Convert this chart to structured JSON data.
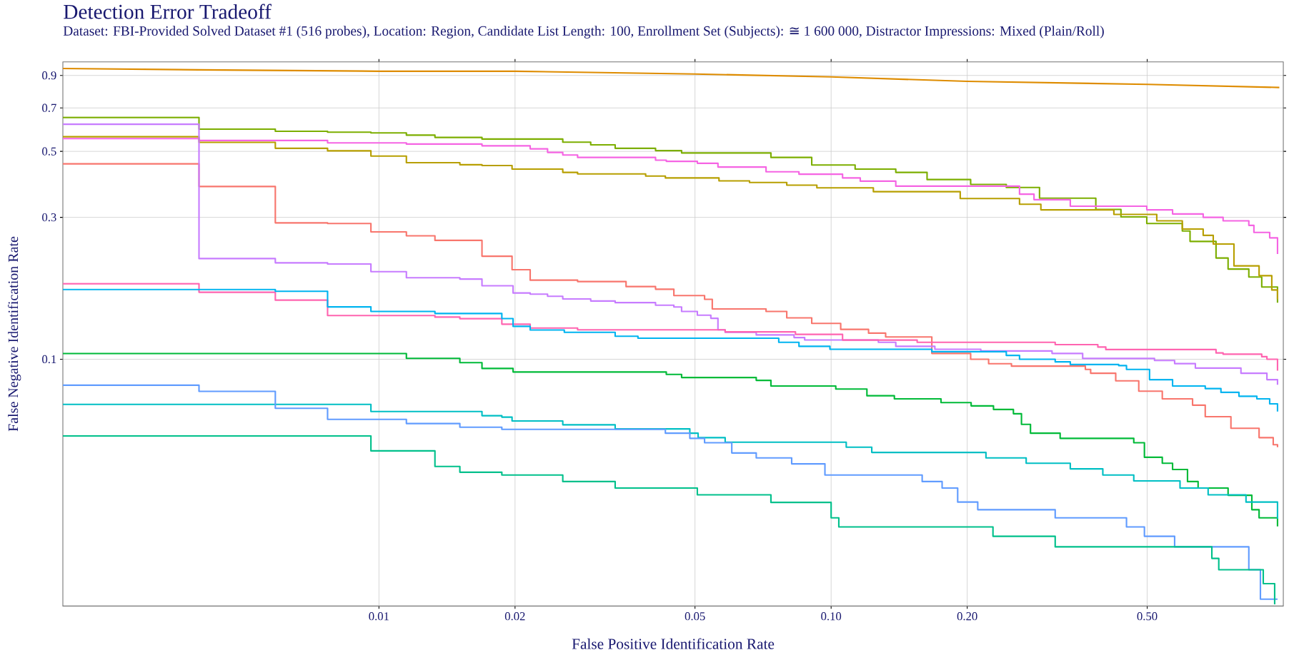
{
  "chart_data": {
    "type": "step",
    "title": "Detection Error Tradeoff",
    "subtitle": "Dataset: FBI-Provided Solved Dataset #1 (516 probes), Location: Region, Candidate List Length: 100, Enrollment Set (Subjects): ≅ 1 600 000, Distractor Impressions: Mixed (Plain/Roll)",
    "xlabel": "False Positive Identification Rate",
    "ylabel": "False Negative Identification Rate",
    "log": "xy",
    "grid": true,
    "line_style": "solid",
    "xlim": [
      0.002,
      1
    ],
    "ylim": [
      0.0148,
      1
    ],
    "xticks": [
      0.01,
      0.02,
      0.05,
      {
        "value": 0.1,
        "label": "0.10"
      },
      {
        "value": 0.2,
        "label": "0.20"
      },
      {
        "value": 0.5,
        "label": "0.50"
      }
    ],
    "yticks": [
      0.1,
      0.3,
      0.5,
      0.7,
      0.9
    ],
    "series": [
      {
        "type": "line",
        "color": "#DE8C00",
        "x": [
          0.002,
          0.004,
          0.01,
          0.02,
          0.05,
          0.1,
          0.2,
          0.5,
          0.98
        ],
        "values": [
          0.95,
          0.94,
          0.93,
          0.93,
          0.91,
          0.89,
          0.86,
          0.84,
          0.82
        ]
      },
      {
        "color": "#7CAE00",
        "x": [
          0.002,
          0.004,
          0.0059,
          0.0077,
          0.0096,
          0.0115,
          0.0133,
          0.0169,
          0.0255,
          0.0294,
          0.0333,
          0.0409,
          0.0467,
          0.0736,
          0.0906,
          0.113,
          0.139,
          0.163,
          0.2035,
          0.244,
          0.289,
          0.385,
          0.4375,
          0.499,
          0.598,
          0.622,
          0.71,
          0.755,
          0.839,
          0.896,
          0.971
        ],
        "values": [
          0.65,
          0.594,
          0.584,
          0.58,
          0.577,
          0.567,
          0.557,
          0.55,
          0.537,
          0.526,
          0.512,
          0.503,
          0.494,
          0.477,
          0.45,
          0.436,
          0.425,
          0.402,
          0.387,
          0.378,
          0.348,
          0.319,
          0.301,
          0.286,
          0.27,
          0.249,
          0.219,
          0.201,
          0.189,
          0.175,
          0.155
        ]
      },
      {
        "color": "#F564E3",
        "x": [
          0.002,
          0.004,
          0.0077,
          0.0115,
          0.0169,
          0.0216,
          0.0236,
          0.0255,
          0.0275,
          0.0409,
          0.0432,
          0.0506,
          0.0562,
          0.0718,
          0.0849,
          0.106,
          0.116,
          0.139,
          0.261,
          0.281,
          0.338,
          0.499,
          0.569,
          0.665,
          0.736,
          0.839,
          0.861,
          0.933,
          0.971
        ],
        "values": [
          0.552,
          0.544,
          0.534,
          0.529,
          0.522,
          0.51,
          0.496,
          0.486,
          0.477,
          0.467,
          0.463,
          0.456,
          0.443,
          0.427,
          0.419,
          0.407,
          0.397,
          0.382,
          0.359,
          0.344,
          0.327,
          0.318,
          0.308,
          0.3,
          0.292,
          0.282,
          0.267,
          0.256,
          0.226
        ]
      },
      {
        "color": "#B79F00",
        "x": [
          0.002,
          0.004,
          0.0059,
          0.0077,
          0.0096,
          0.0115,
          0.0151,
          0.0169,
          0.0197,
          0.0255,
          0.0275,
          0.0389,
          0.043,
          0.0565,
          0.066,
          0.0798,
          0.093,
          0.124,
          0.193,
          0.261,
          0.291,
          0.422,
          0.525,
          0.598,
          0.665,
          0.7,
          0.778,
          0.884,
          0.943,
          0.971
        ],
        "values": [
          0.56,
          0.536,
          0.512,
          0.502,
          0.482,
          0.458,
          0.451,
          0.448,
          0.436,
          0.425,
          0.42,
          0.413,
          0.407,
          0.398,
          0.393,
          0.385,
          0.377,
          0.366,
          0.347,
          0.332,
          0.318,
          0.307,
          0.292,
          0.274,
          0.261,
          0.244,
          0.206,
          0.191,
          0.171,
          0.159
        ]
      },
      {
        "color": "#F8766D",
        "x": [
          0.002,
          0.004,
          0.0059,
          0.0077,
          0.0096,
          0.0115,
          0.0133,
          0.0169,
          0.0197,
          0.0216,
          0.0275,
          0.0352,
          0.0409,
          0.0449,
          0.0525,
          0.0546,
          0.0718,
          0.0798,
          0.0906,
          0.105,
          0.121,
          0.132,
          0.167,
          0.2035,
          0.223,
          0.2505,
          0.365,
          0.375,
          0.426,
          0.479,
          0.54,
          0.63,
          0.672,
          0.766,
          0.884,
          0.95,
          0.971
        ],
        "values": [
          0.454,
          0.381,
          0.2875,
          0.286,
          0.268,
          0.26,
          0.251,
          0.222,
          0.2,
          0.1845,
          0.1825,
          0.1755,
          0.172,
          0.1637,
          0.159,
          0.1476,
          0.1448,
          0.1378,
          0.132,
          0.126,
          0.1224,
          0.1188,
          0.1046,
          0.1,
          0.0966,
          0.0948,
          0.0924,
          0.0897,
          0.0846,
          0.0781,
          0.0736,
          0.0701,
          0.0641,
          0.0586,
          0.0545,
          0.0516,
          0.0506
        ]
      },
      {
        "color": "#C77CFF",
        "x": [
          0.002,
          0.004,
          0.0059,
          0.0077,
          0.0096,
          0.0115,
          0.0151,
          0.0169,
          0.0198,
          0.0216,
          0.0236,
          0.0255,
          0.0294,
          0.0333,
          0.0409,
          0.0449,
          0.0467,
          0.0506,
          0.0542,
          0.0562,
          0.0583,
          0.0683,
          0.0828,
          0.0874,
          0.1272,
          0.139,
          0.1696,
          0.2143,
          0.308,
          0.36,
          0.519,
          0.575,
          0.639,
          0.806,
          0.92,
          0.971
        ],
        "values": [
          0.617,
          0.218,
          0.211,
          0.209,
          0.197,
          0.188,
          0.186,
          0.1766,
          0.167,
          0.1655,
          0.1628,
          0.1595,
          0.157,
          0.155,
          0.152,
          0.1499,
          0.1448,
          0.1406,
          0.1373,
          0.1256,
          0.1232,
          0.1207,
          0.1183,
          0.1161,
          0.114,
          0.1105,
          0.108,
          0.1066,
          0.1046,
          0.1006,
          0.099,
          0.0967,
          0.0934,
          0.0897,
          0.0854,
          0.0821
        ]
      },
      {
        "color": "#FF64B0",
        "x": [
          0.002,
          0.004,
          0.0059,
          0.0077,
          0.0133,
          0.0151,
          0.0187,
          0.0216,
          0.0275,
          0.0583,
          0.0834,
          0.106,
          0.155,
          0.313,
          0.389,
          0.405,
          0.71,
          0.736,
          0.896,
          0.92,
          0.971
        ],
        "values": [
          0.1795,
          0.168,
          0.158,
          0.1403,
          0.1386,
          0.1369,
          0.1312,
          0.1273,
          0.1256,
          0.1236,
          0.1212,
          0.116,
          0.114,
          0.112,
          0.1099,
          0.1078,
          0.105,
          0.104,
          0.102,
          0.1,
          0.0915
        ]
      },
      {
        "color": "#00B4F0",
        "x": [
          0.002,
          0.0059,
          0.0077,
          0.0096,
          0.0133,
          0.0187,
          0.0198,
          0.0216,
          0.0257,
          0.0333,
          0.0374,
          0.0766,
          0.0849,
          0.0994,
          0.167,
          0.244,
          0.261,
          0.313,
          0.338,
          0.4325,
          0.45,
          0.506,
          0.569,
          0.672,
          0.728,
          0.798,
          0.874,
          0.933,
          0.971
        ],
        "values": [
          0.1716,
          0.1693,
          0.15,
          0.1448,
          0.1425,
          0.137,
          0.129,
          0.1254,
          0.1232,
          0.1195,
          0.1177,
          0.114,
          0.1105,
          0.108,
          0.106,
          0.103,
          0.1,
          0.098,
          0.096,
          0.0952,
          0.0924,
          0.0854,
          0.0813,
          0.0797,
          0.0774,
          0.0751,
          0.0736,
          0.0708,
          0.0667
        ]
      },
      {
        "color": "#00BA38",
        "x": [
          0.002,
          0.0115,
          0.0151,
          0.0169,
          0.0198,
          0.0432,
          0.0467,
          0.0683,
          0.0736,
          0.1024,
          0.12,
          0.138,
          0.175,
          0.204,
          0.2286,
          0.253,
          0.2636,
          0.276,
          0.321,
          0.467,
          0.493,
          0.54,
          0.569,
          0.614,
          0.648,
          0.755,
          0.852,
          0.884,
          0.971
        ],
        "values": [
          0.1045,
          0.1007,
          0.0974,
          0.0931,
          0.0906,
          0.0889,
          0.0868,
          0.0849,
          0.0813,
          0.0794,
          0.0754,
          0.0736,
          0.0715,
          0.0697,
          0.0678,
          0.0656,
          0.0604,
          0.0564,
          0.0542,
          0.0524,
          0.0468,
          0.0447,
          0.0426,
          0.0388,
          0.0369,
          0.0349,
          0.0312,
          0.0293,
          0.0274
        ]
      },
      {
        "color": "#00BFC4",
        "x": [
          0.002,
          0.0096,
          0.0169,
          0.0187,
          0.0197,
          0.0255,
          0.0333,
          0.0487,
          0.0508,
          0.0583,
          0.108,
          0.123,
          0.22,
          0.27,
          0.338,
          0.399,
          0.467,
          0.591,
          0.682,
          0.827,
          0.971
        ],
        "values": [
          0.0705,
          0.0667,
          0.0646,
          0.0639,
          0.062,
          0.0602,
          0.0583,
          0.0564,
          0.0545,
          0.0526,
          0.0506,
          0.0486,
          0.0466,
          0.0447,
          0.0428,
          0.0408,
          0.039,
          0.0369,
          0.035,
          0.0331,
          0.0291
        ]
      },
      {
        "color": "#619CFF",
        "x": [
          0.002,
          0.004,
          0.0059,
          0.0077,
          0.0115,
          0.0151,
          0.0187,
          0.043,
          0.0487,
          0.0525,
          0.0603,
          0.0683,
          0.0818,
          0.0969,
          0.159,
          0.176,
          0.1905,
          0.211,
          0.313,
          0.45,
          0.493,
          0.575,
          0.839,
          0.89,
          0.971
        ],
        "values": [
          0.0818,
          0.078,
          0.0684,
          0.0628,
          0.0608,
          0.0591,
          0.0581,
          0.0564,
          0.0542,
          0.0524,
          0.0484,
          0.0466,
          0.0445,
          0.0408,
          0.0388,
          0.0369,
          0.0331,
          0.0312,
          0.0293,
          0.0273,
          0.0254,
          0.0234,
          0.0196,
          0.0156,
          0.0156
        ]
      },
      {
        "color": "#00C08B",
        "x": [
          0.002,
          0.0096,
          0.0133,
          0.0151,
          0.0187,
          0.0255,
          0.0333,
          0.0506,
          0.0736,
          0.1,
          0.104,
          0.228,
          0.313,
          0.695,
          0.72,
          0.903,
          0.957
        ],
        "values": [
          0.0552,
          0.0492,
          0.0436,
          0.0417,
          0.0408,
          0.0388,
          0.0369,
          0.035,
          0.033,
          0.0293,
          0.0273,
          0.0254,
          0.0234,
          0.0214,
          0.0196,
          0.0176,
          0.015
        ]
      }
    ]
  }
}
